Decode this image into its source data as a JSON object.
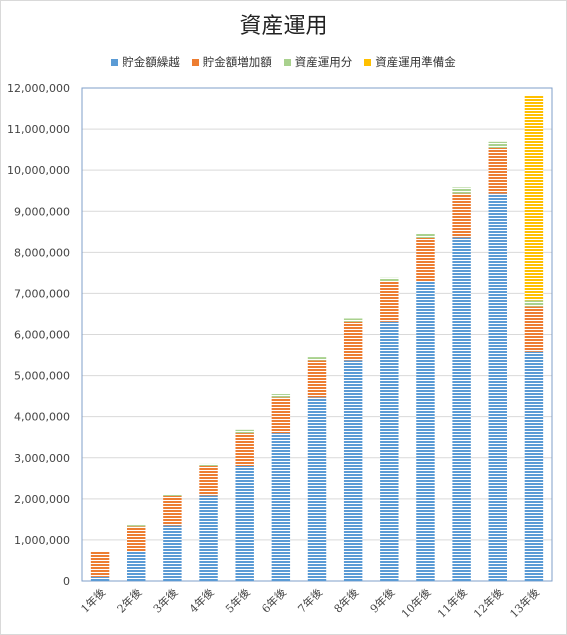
{
  "chart_data": {
    "type": "bar",
    "stacked": true,
    "title": "資産運用",
    "categories": [
      "1年後",
      "2年後",
      "3年後",
      "4年後",
      "5年後",
      "6年後",
      "7年後",
      "8年後",
      "9年後",
      "10年後",
      "11年後",
      "12年後",
      "13年後"
    ],
    "series": [
      {
        "name": "貯金額繰越",
        "color": "#5b9bd5",
        "values": [
          100000,
          710000,
          1350000,
          2080000,
          2800000,
          3600000,
          4470000,
          5370000,
          6310000,
          7280000,
          8360000,
          9430000,
          5580000
        ]
      },
      {
        "name": "貯金額増加額",
        "color": "#ed7d31",
        "values": [
          620000,
          620000,
          720000,
          720000,
          800000,
          870000,
          900000,
          940000,
          970000,
          1070000,
          1070000,
          1110000,
          1100000
        ]
      },
      {
        "name": "資産運用分",
        "color": "#a9d18e",
        "values": [
          0,
          30000,
          30000,
          50000,
          80000,
          80000,
          80000,
          80000,
          100000,
          110000,
          150000,
          150000,
          150000
        ]
      },
      {
        "name": "資産運用準備金",
        "color": "#ffc000",
        "values": [
          0,
          0,
          0,
          0,
          0,
          0,
          0,
          0,
          0,
          0,
          0,
          0,
          5000000
        ]
      }
    ],
    "ylim": [
      0,
      12000000
    ],
    "yticks": [
      0,
      1000000,
      2000000,
      3000000,
      4000000,
      5000000,
      6000000,
      7000000,
      8000000,
      9000000,
      10000000,
      11000000,
      12000000
    ],
    "ytick_labels": [
      "0",
      "1,000,000",
      "2,000,000",
      "3,000,000",
      "4,000,000",
      "5,000,000",
      "6,000,000",
      "7,000,000",
      "8,000,000",
      "9,000,000",
      "10,000,000",
      "11,000,000",
      "12,000,000"
    ],
    "grid": true,
    "legend_position": "top"
  }
}
